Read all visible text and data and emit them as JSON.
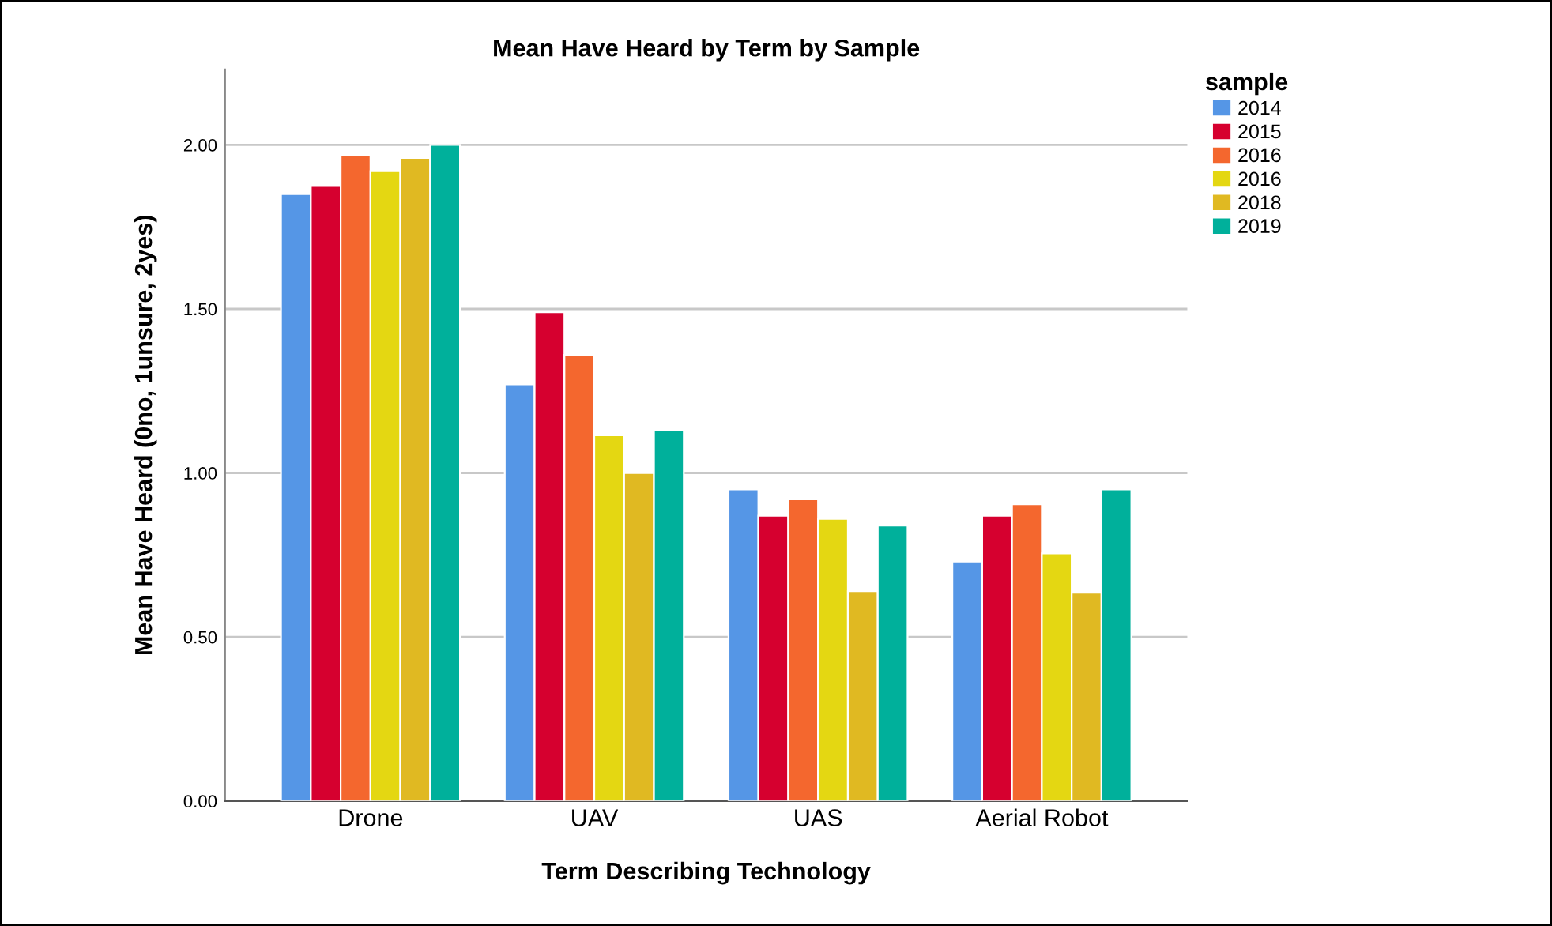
{
  "chart_data": {
    "type": "bar",
    "title": "Mean Have Heard by Term by Sample",
    "xlabel": "Term Describing Technology",
    "ylabel": "Mean Have Heard (0no, 1unsure, 2yes)",
    "legend_title": "sample",
    "categories": [
      "Drone",
      "UAV",
      "UAS",
      "Aerial Robot"
    ],
    "series": [
      {
        "name": "2014",
        "color": "#5596e6",
        "values": [
          1.85,
          1.27,
          0.95,
          0.73
        ]
      },
      {
        "name": "2015",
        "color": "#d6002f",
        "values": [
          1.875,
          1.49,
          0.87,
          0.87
        ]
      },
      {
        "name": "2016",
        "color": "#f4672e",
        "values": [
          1.97,
          1.36,
          0.92,
          0.905
        ]
      },
      {
        "name": "2016",
        "color": "#e4d712",
        "values": [
          1.92,
          1.115,
          0.86,
          0.755
        ]
      },
      {
        "name": "2018",
        "color": "#e0b922",
        "values": [
          1.96,
          1.0,
          0.64,
          0.635
        ]
      },
      {
        "name": "2019",
        "color": "#00b09b",
        "values": [
          2.0,
          1.13,
          0.84,
          0.95
        ]
      }
    ],
    "ylim": [
      0,
      2.23
    ],
    "yticks": [
      {
        "value": 0,
        "label": "0.00"
      },
      {
        "value": 0.5,
        "label": "0.50"
      },
      {
        "value": 1,
        "label": "1.00"
      },
      {
        "value": 1.5,
        "label": "1.50"
      },
      {
        "value": 2,
        "label": "2.00"
      }
    ],
    "grid": "y",
    "legend": "top right"
  }
}
